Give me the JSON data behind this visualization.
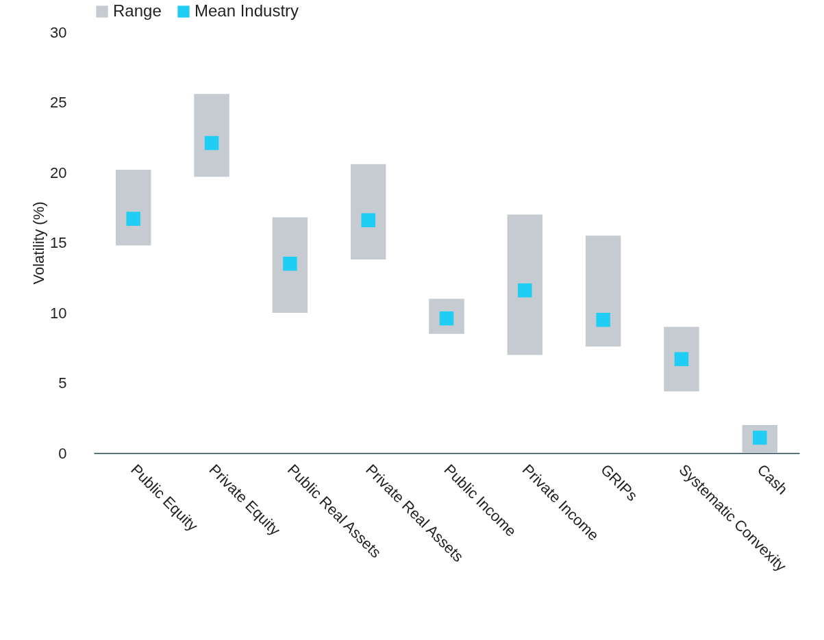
{
  "chart_data": {
    "type": "bar",
    "ylabel": "Volatility (%)",
    "categories": [
      "Public Equity",
      "Private Equity",
      "Public Real Assets",
      "Private Real Assets",
      "Public Income",
      "Private Income",
      "GRIPs",
      "Systematic Convexity",
      "Cash"
    ],
    "series": [
      {
        "name": "Range",
        "color": "#c5cbd0",
        "base": [
          14.8,
          19.7,
          10.0,
          13.8,
          8.5,
          7.0,
          7.6,
          4.4,
          0
        ],
        "values": [
          5.4,
          5.9,
          6.8,
          6.8,
          2.5,
          10.0,
          7.9,
          4.6,
          2.0
        ]
      },
      {
        "name": "Mean Industry",
        "type": "scatter",
        "color": "#1fcdf5",
        "x": [
          "Public Equity",
          "Private Equity",
          "Public Real Assets",
          "Private Real Assets",
          "Public Income",
          "Private Income",
          "GRIPs",
          "Systematic Convexity",
          "Cash"
        ],
        "values": [
          16.7,
          22.1,
          13.5,
          16.6,
          9.6,
          11.6,
          9.5,
          6.7,
          1.1
        ]
      }
    ],
    "ylim": [
      0,
      30
    ],
    "yticks": [
      0,
      5,
      10,
      15,
      20,
      25,
      30
    ],
    "grid": false,
    "legend": "top",
    "marker": "square"
  }
}
